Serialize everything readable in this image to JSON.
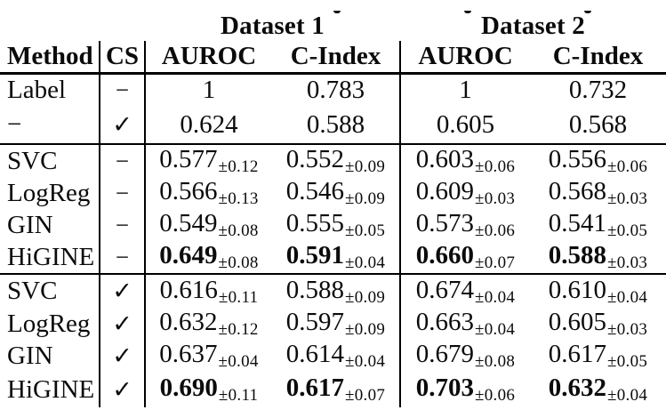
{
  "table": {
    "group_headers": [
      {
        "label": "Dataset 1"
      },
      {
        "label": "Dataset 2"
      }
    ],
    "column_headers": [
      "Method",
      "CS",
      "AUROC",
      "C-Index",
      "AUROC",
      "C-Index"
    ],
    "symbols": {
      "no_cs": "−",
      "yes_cs": "✓"
    },
    "rows": [
      {
        "method": "Label",
        "cs": "−",
        "bold": false,
        "separator_after": false,
        "cells": [
          {
            "value": "1",
            "sd": ""
          },
          {
            "value": "0.783",
            "sd": ""
          },
          {
            "value": "1",
            "sd": ""
          },
          {
            "value": "0.732",
            "sd": ""
          }
        ]
      },
      {
        "method": "−",
        "cs": "✓",
        "bold": false,
        "separator_after": true,
        "cells": [
          {
            "value": "0.624",
            "sd": ""
          },
          {
            "value": "0.588",
            "sd": ""
          },
          {
            "value": "0.605",
            "sd": ""
          },
          {
            "value": "0.568",
            "sd": ""
          }
        ]
      },
      {
        "method": "SVC",
        "cs": "−",
        "bold": false,
        "separator_after": false,
        "cells": [
          {
            "value": "0.577",
            "sd": "±0.12"
          },
          {
            "value": "0.552",
            "sd": "±0.09"
          },
          {
            "value": "0.603",
            "sd": "±0.06"
          },
          {
            "value": "0.556",
            "sd": "±0.06"
          }
        ]
      },
      {
        "method": "LogReg",
        "cs": "−",
        "bold": false,
        "separator_after": false,
        "cells": [
          {
            "value": "0.566",
            "sd": "±0.13"
          },
          {
            "value": "0.546",
            "sd": "±0.09"
          },
          {
            "value": "0.609",
            "sd": "±0.03"
          },
          {
            "value": "0.568",
            "sd": "±0.03"
          }
        ]
      },
      {
        "method": "GIN",
        "cs": "−",
        "bold": false,
        "separator_after": false,
        "cells": [
          {
            "value": "0.549",
            "sd": "±0.08"
          },
          {
            "value": "0.555",
            "sd": "±0.05"
          },
          {
            "value": "0.573",
            "sd": "±0.06"
          },
          {
            "value": "0.541",
            "sd": "±0.05"
          }
        ]
      },
      {
        "method": "HiGINE",
        "cs": "−",
        "bold": true,
        "separator_after": true,
        "cells": [
          {
            "value": "0.649",
            "sd": "±0.08"
          },
          {
            "value": "0.591",
            "sd": "±0.04"
          },
          {
            "value": "0.660",
            "sd": "±0.07"
          },
          {
            "value": "0.588",
            "sd": "±0.03"
          }
        ]
      },
      {
        "method": "SVC",
        "cs": "✓",
        "bold": false,
        "separator_after": false,
        "cells": [
          {
            "value": "0.616",
            "sd": "±0.11"
          },
          {
            "value": "0.588",
            "sd": "±0.09"
          },
          {
            "value": "0.674",
            "sd": "±0.04"
          },
          {
            "value": "0.610",
            "sd": "±0.04"
          }
        ]
      },
      {
        "method": "LogReg",
        "cs": "✓",
        "bold": false,
        "separator_after": false,
        "cells": [
          {
            "value": "0.632",
            "sd": "±0.12"
          },
          {
            "value": "0.597",
            "sd": "±0.09"
          },
          {
            "value": "0.663",
            "sd": "±0.04"
          },
          {
            "value": "0.605",
            "sd": "±0.03"
          }
        ]
      },
      {
        "method": "GIN",
        "cs": "✓",
        "bold": false,
        "separator_after": false,
        "cells": [
          {
            "value": "0.637",
            "sd": "±0.04"
          },
          {
            "value": "0.614",
            "sd": "±0.04"
          },
          {
            "value": "0.679",
            "sd": "±0.08"
          },
          {
            "value": "0.617",
            "sd": "±0.05"
          }
        ]
      },
      {
        "method": "HiGINE",
        "cs": "✓",
        "bold": true,
        "separator_after": false,
        "cells": [
          {
            "value": "0.690",
            "sd": "±0.11"
          },
          {
            "value": "0.617",
            "sd": "±0.07"
          },
          {
            "value": "0.703",
            "sd": "±0.06"
          },
          {
            "value": "0.632",
            "sd": "±0.04"
          }
        ]
      }
    ]
  }
}
